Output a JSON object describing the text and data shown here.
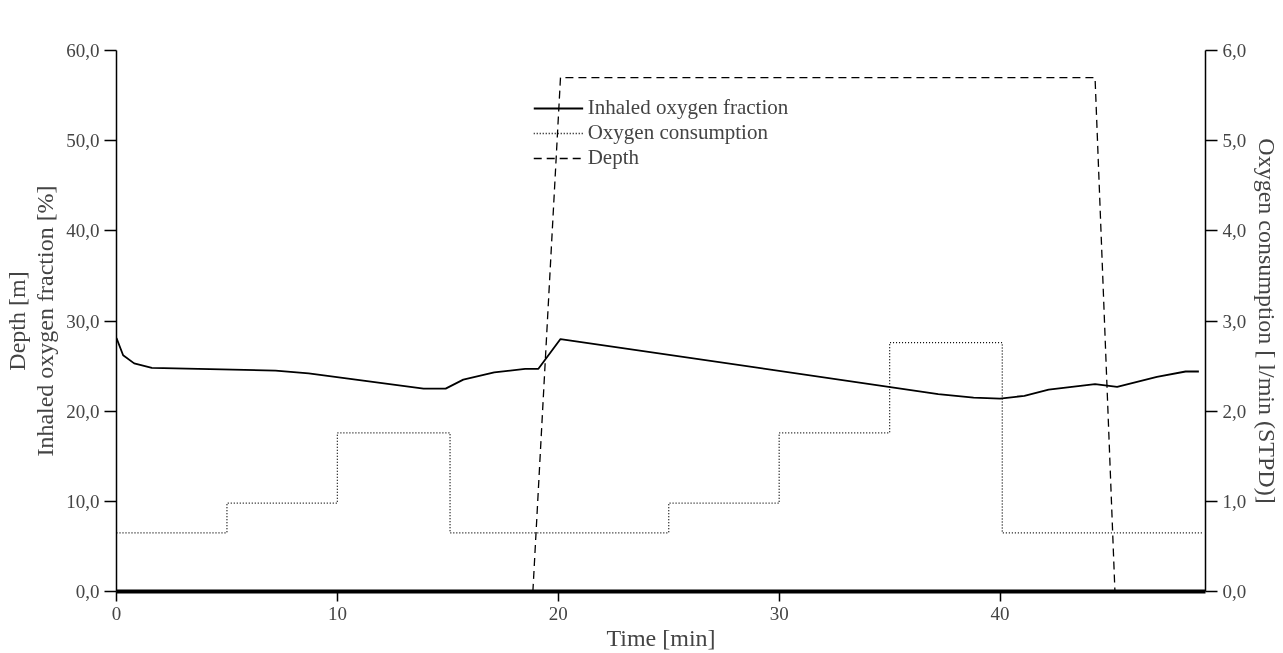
{
  "chart_data": {
    "type": "line",
    "xlabel": "Time [min]",
    "ylabel": "Inhaled oxygen fraction [%]",
    "y2label": "Oxygen consumption [ l/min (STPD)]",
    "annotations": [
      "Depth [m]"
    ],
    "xlim": [
      0,
      49.3
    ],
    "xticks": [
      0,
      10,
      20,
      30,
      40
    ],
    "ylim": [
      0,
      60
    ],
    "yticks": [
      {
        "value": 0,
        "label": "0,0"
      },
      {
        "value": 10,
        "label": "10,0"
      },
      {
        "value": 20,
        "label": "20,0"
      },
      {
        "value": 30,
        "label": "30,0"
      },
      {
        "value": 40,
        "label": "40,0"
      },
      {
        "value": 50,
        "label": "50,0"
      },
      {
        "value": 60,
        "label": "60,0"
      }
    ],
    "y2lim": [
      0,
      6
    ],
    "y2ticks": [
      {
        "value": 0,
        "label": "0,0"
      },
      {
        "value": 1,
        "label": "1,0"
      },
      {
        "value": 2,
        "label": "2,0"
      },
      {
        "value": 3,
        "label": "3,0"
      },
      {
        "value": 4,
        "label": "4,0"
      },
      {
        "value": 5,
        "label": "5,0"
      },
      {
        "value": 6,
        "label": "6,0"
      }
    ],
    "grid": false,
    "legend": "top",
    "marker": "none",
    "series": [
      {
        "name": "Inhaled oxygen fraction",
        "line_style": "solid",
        "color": "#000000",
        "x": [
          0,
          0.3,
          0.8,
          1.6,
          7.2,
          8.7,
          13.9,
          14.9,
          15.7,
          17.1,
          18.5,
          19.1,
          20.1,
          37.2,
          38.8,
          40,
          41.1,
          42.2,
          44.3,
          45.3,
          47.1,
          48.4,
          49.0
        ],
        "values": [
          28.1,
          26.2,
          25.3,
          24.8,
          24.5,
          24.2,
          22.5,
          22.5,
          23.5,
          24.3,
          24.7,
          24.7,
          28.0,
          21.9,
          21.5,
          21.4,
          21.7,
          22.4,
          23.0,
          22.7,
          23.8,
          24.4,
          24.4
        ]
      },
      {
        "name": "Oxygen consumption",
        "type": "step",
        "line_style": "dotted",
        "color": "#000000",
        "axis": "y2",
        "x": [
          0,
          5,
          10,
          15.1,
          25,
          30,
          35,
          40.1,
          49.2
        ],
        "values": [
          0.65,
          0.98,
          1.76,
          0.65,
          0.98,
          1.76,
          2.76,
          0.65,
          0.65
        ]
      },
      {
        "name": "Depth",
        "line_style": "dashed",
        "color": "#000000",
        "x": [
          0,
          18.85,
          20.1,
          44.3,
          45.2,
          49.2
        ],
        "values": [
          0,
          0,
          57,
          57,
          0,
          0
        ]
      }
    ]
  }
}
